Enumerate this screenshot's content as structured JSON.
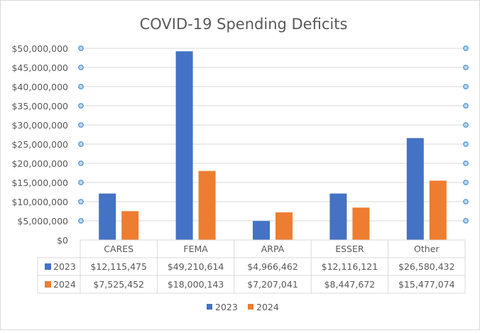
{
  "chart_data": {
    "type": "bar",
    "title": "COVID-19 Spending Deficits",
    "xlabel": "",
    "ylabel": "",
    "categories": [
      "CARES",
      "FEMA",
      "ARPA",
      "ESSER",
      "Other"
    ],
    "series": [
      {
        "name": "2023",
        "color": "#4472c4",
        "values": [
          12115475,
          49210614,
          4966462,
          12116121,
          26580432
        ],
        "labels": [
          "$12,115,475",
          "$49,210,614",
          "$4,966,462",
          "$12,116,121",
          "$26,580,432"
        ]
      },
      {
        "name": "2024",
        "color": "#ed7d31",
        "values": [
          7525452,
          18000143,
          7207041,
          8447672,
          15477074
        ],
        "labels": [
          "$7,525,452",
          "$18,000,143",
          "$7,207,041",
          "$8,447,672",
          "$15,477,074"
        ]
      }
    ],
    "ylim": [
      0,
      50000000
    ],
    "yticks": [
      0,
      5000000,
      10000000,
      15000000,
      20000000,
      25000000,
      30000000,
      35000000,
      40000000,
      45000000,
      50000000
    ],
    "ytick_labels": [
      "$0",
      "$5,000,000",
      "$10,000,000",
      "$15,000,000",
      "$20,000,000",
      "$25,000,000",
      "$30,000,000",
      "$35,000,000",
      "$40,000,000",
      "$45,000,000",
      "$50,000,000"
    ],
    "grid": true,
    "data_table": true,
    "legend": {
      "position": "bottom",
      "entries": [
        "2023",
        "2024"
      ]
    },
    "gridline_marker_color": "#5b9bd5",
    "text_color": "#595959",
    "grid_color": "#d9d9d9"
  }
}
